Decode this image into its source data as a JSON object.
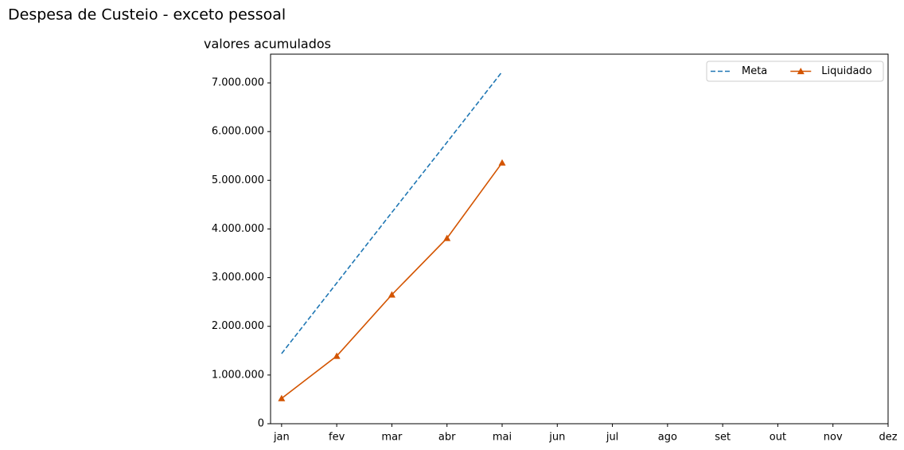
{
  "chart_data": {
    "type": "line",
    "title": "Despesa de Custeio - exceto pessoal",
    "subtitle": "valores acumulados",
    "categories": [
      "jan",
      "fev",
      "mar",
      "abr",
      "mai",
      "jun",
      "jul",
      "ago",
      "set",
      "out",
      "nov",
      "dez"
    ],
    "series": [
      {
        "name": "Meta",
        "color": "#1f77b4",
        "linestyle": "dashed",
        "marker": "none",
        "values": [
          1440000,
          2890000,
          4340000,
          5780000,
          7230000,
          null,
          null,
          null,
          null,
          null,
          null,
          null
        ]
      },
      {
        "name": "Liquidado",
        "color": "#d35400",
        "linestyle": "solid",
        "marker": "triangle",
        "values": [
          520000,
          1390000,
          2650000,
          3810000,
          5360000,
          null,
          null,
          null,
          null,
          null,
          null,
          null
        ]
      }
    ],
    "xlim": [
      -0.2,
      11
    ],
    "ylim": [
      0,
      7590000
    ],
    "yticks": [
      0,
      {
        "value": 1000000,
        "label": "1.000.000"
      },
      {
        "value": 2000000,
        "label": "2.000.000"
      },
      {
        "value": 3000000,
        "label": "3.000.000"
      },
      {
        "value": 4000000,
        "label": "4.000.000"
      },
      {
        "value": 5000000,
        "label": "5.000.000"
      },
      {
        "value": 6000000,
        "label": "6.000.000"
      },
      {
        "value": 7000000,
        "label": "7.000.000"
      }
    ],
    "grid": false,
    "legend": "upper right"
  }
}
